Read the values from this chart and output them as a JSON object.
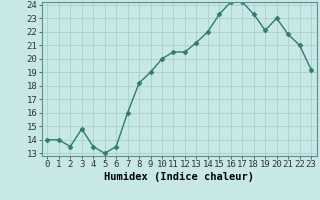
{
  "x": [
    0,
    1,
    2,
    3,
    4,
    5,
    6,
    7,
    8,
    9,
    10,
    11,
    12,
    13,
    14,
    15,
    16,
    17,
    18,
    19,
    20,
    21,
    22,
    23
  ],
  "y": [
    14,
    14,
    13.5,
    14.8,
    13.5,
    13,
    13.5,
    16,
    18.2,
    19,
    20,
    20.5,
    20.5,
    21.2,
    22,
    23.3,
    24.2,
    24.2,
    23.3,
    22.1,
    23,
    21.8,
    21,
    19.2
  ],
  "xlabel": "Humidex (Indice chaleur)",
  "line_color": "#2e7d6e",
  "marker_color": "#2e7d6e",
  "bg_color": "#c8e8e8",
  "grid_color": "#a8d0d0",
  "ylim_min": 13,
  "ylim_max": 24,
  "xlim_min": -0.5,
  "xlim_max": 23.5,
  "yticks": [
    13,
    14,
    15,
    16,
    17,
    18,
    19,
    20,
    21,
    22,
    23,
    24
  ],
  "xticks": [
    0,
    1,
    2,
    3,
    4,
    5,
    6,
    7,
    8,
    9,
    10,
    11,
    12,
    13,
    14,
    15,
    16,
    17,
    18,
    19,
    20,
    21,
    22,
    23
  ],
  "tick_fontsize": 6.5,
  "xlabel_fontsize": 7.5
}
